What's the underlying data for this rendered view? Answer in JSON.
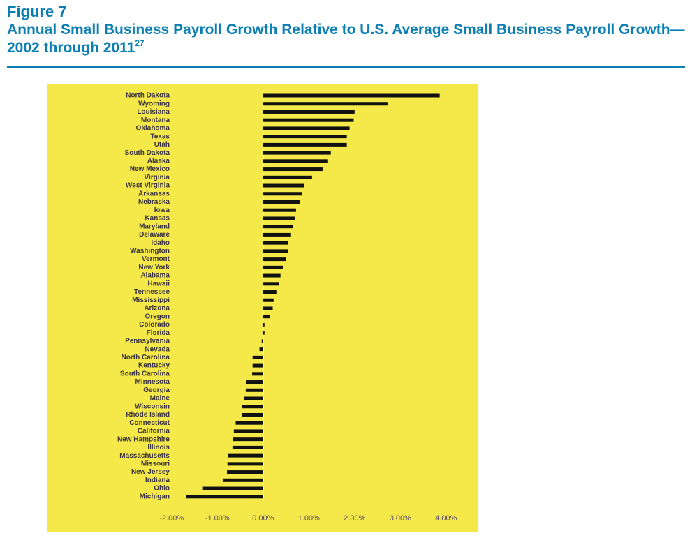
{
  "figure_label": "Figure 7",
  "chart_data": {
    "type": "barh",
    "title": "Annual Small Business Payroll Growth Relative to U.S. Average Small Business Payroll Growth—2002 through 2011",
    "title_note": "27",
    "categories": [
      "North Dakota",
      "Wyoming",
      "Louisiana",
      "Montana",
      "Oklahoma",
      "Texas",
      "Utah",
      "South Dakota",
      "Alaska",
      "New Mexico",
      "Virginia",
      "West Virginia",
      "Arkansas",
      "Nebraska",
      "Iowa",
      "Kansas",
      "Maryland",
      "Delaware",
      "Idaho",
      "Washington",
      "Vermont",
      "New York",
      "Alabama",
      "Hawaii",
      "Tennessee",
      "Mississippi",
      "Arizona",
      "Oregon",
      "Colorado",
      "Florida",
      "Pennsylvania",
      "Nevada",
      "North Carolina",
      "Kentucky",
      "South Carolina",
      "Minnesota",
      "Georgia",
      "Maine",
      "Wisconsin",
      "Rhode Island",
      "Connecticut",
      "California",
      "New Hampshire",
      "Illinois",
      "Massachusetts",
      "Missouri",
      "New Jersey",
      "Indiana",
      "Ohio",
      "Michigan"
    ],
    "values": [
      3.86,
      2.72,
      2.0,
      1.98,
      1.89,
      1.83,
      1.83,
      1.48,
      1.42,
      1.3,
      1.07,
      0.89,
      0.85,
      0.81,
      0.72,
      0.69,
      0.66,
      0.61,
      0.55,
      0.55,
      0.5,
      0.43,
      0.38,
      0.35,
      0.29,
      0.23,
      0.21,
      0.15,
      0.03,
      0.03,
      -0.03,
      -0.08,
      -0.23,
      -0.23,
      -0.24,
      -0.37,
      -0.38,
      -0.41,
      -0.46,
      -0.47,
      -0.6,
      -0.64,
      -0.66,
      -0.67,
      -0.76,
      -0.78,
      -0.79,
      -0.87,
      -1.33,
      -1.69
    ],
    "color": "#111111",
    "background": "#f5e94a",
    "xlim": [
      -2.5,
      4.4
    ],
    "xticks": [
      {
        "value": -2,
        "label": "-2.00%"
      },
      {
        "value": -1,
        "label": "-1.00%"
      },
      {
        "value": 0,
        "label": "0.00%"
      },
      {
        "value": 1,
        "label": "1.00%"
      },
      {
        "value": 2,
        "label": "2.00%"
      },
      {
        "value": 3,
        "label": "3.00%"
      },
      {
        "value": 4,
        "label": "4.00%"
      }
    ],
    "grid": false
  }
}
